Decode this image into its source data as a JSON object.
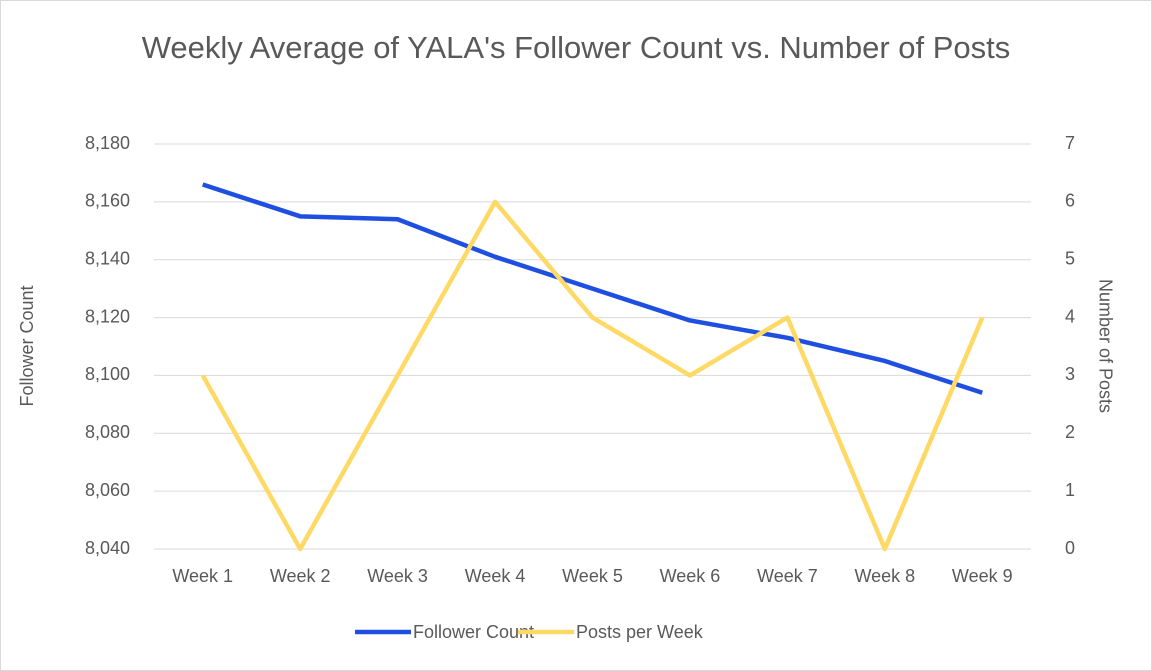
{
  "chart_data": {
    "type": "line",
    "title": "Weekly Average of YALA's Follower Count vs. Number of Posts",
    "y_label": "Follower Count",
    "y2_label": "Number of Posts",
    "categories": [
      "Week 1",
      "Week 2",
      "Week 3",
      "Week 4",
      "Week 5",
      "Week 6",
      "Week 7",
      "Week 8",
      "Week 9"
    ],
    "series": [
      {
        "name": "Follower Count",
        "color": "#1f4fe0",
        "values": [
          8166,
          8155,
          8154,
          8141,
          8130,
          8119,
          8113,
          8105,
          8094
        ]
      },
      {
        "name": "Posts per Week",
        "color": "#ffd966",
        "axis": "y2",
        "values": [
          3,
          0,
          3,
          6,
          4,
          3,
          4,
          0,
          4
        ]
      }
    ],
    "ylim": [
      8040,
      8180
    ],
    "yticks": [
      {
        "value": 8040,
        "label": "8,040"
      },
      {
        "value": 8060,
        "label": "8,060"
      },
      {
        "value": 8080,
        "label": "8,080"
      },
      {
        "value": 8100,
        "label": "8,100"
      },
      {
        "value": 8120,
        "label": "8,120"
      },
      {
        "value": 8140,
        "label": "8,140"
      },
      {
        "value": 8160,
        "label": "8,160"
      },
      {
        "value": 8180,
        "label": "8,180"
      }
    ],
    "y2lim": [
      0,
      7
    ],
    "y2ticks": [
      0,
      1,
      2,
      3,
      4,
      5,
      6,
      7
    ],
    "grid": true,
    "legend": "bottom"
  }
}
